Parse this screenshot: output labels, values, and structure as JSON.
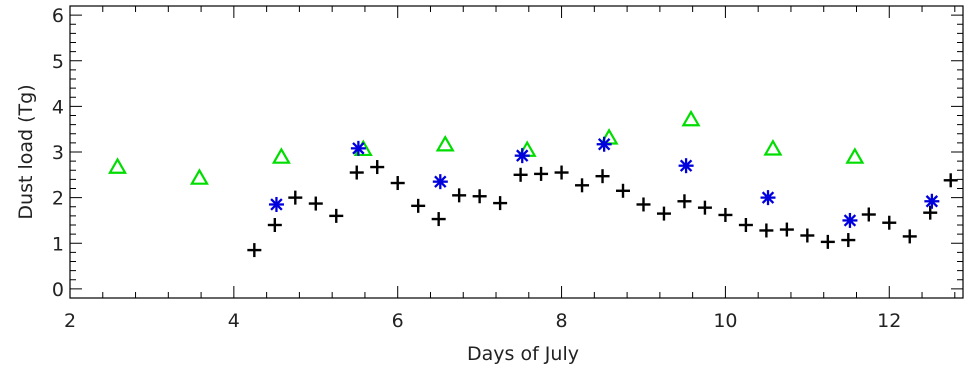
{
  "chart_data": {
    "type": "scatter",
    "title": "",
    "xlabel": "Days of July",
    "ylabel": "Dust load (Tg)",
    "xlim": [
      2,
      12.9
    ],
    "ylim": [
      -0.2,
      6.2
    ],
    "xticks": [
      2,
      4,
      6,
      8,
      10,
      12
    ],
    "yticks": [
      0,
      1,
      2,
      3,
      4,
      5,
      6
    ],
    "grid": false,
    "series": [
      {
        "marker": "plus",
        "color": "#000000",
        "x": [
          4.25,
          4.5,
          4.75,
          5.0,
          5.25,
          5.5,
          5.75,
          6.0,
          6.25,
          6.5,
          6.75,
          7.0,
          7.25,
          7.5,
          7.75,
          8.0,
          8.25,
          8.5,
          8.75,
          9.0,
          9.25,
          9.5,
          9.75,
          10.0,
          10.25,
          10.5,
          10.75,
          11.0,
          11.25,
          11.5,
          11.75,
          12.0,
          12.25,
          12.5,
          12.75
        ],
        "y": [
          0.85,
          1.4,
          2.0,
          1.87,
          1.6,
          2.55,
          2.67,
          2.32,
          1.82,
          1.53,
          2.05,
          2.03,
          1.88,
          2.5,
          2.52,
          2.55,
          2.27,
          2.47,
          2.15,
          1.85,
          1.65,
          1.92,
          1.78,
          1.62,
          1.4,
          1.28,
          1.3,
          1.17,
          1.03,
          1.07,
          1.63,
          1.45,
          1.15,
          1.67,
          2.38
        ]
      },
      {
        "marker": "triangle",
        "color": "#00dd00",
        "x": [
          2.58,
          3.58,
          4.58,
          5.58,
          6.58,
          7.58,
          8.58,
          9.58,
          10.58,
          11.58
        ],
        "y": [
          2.66,
          2.42,
          2.88,
          3.05,
          3.15,
          3.03,
          3.3,
          3.7,
          3.06,
          2.88
        ]
      },
      {
        "marker": "asterisk",
        "color": "#0000dd",
        "x": [
          4.52,
          5.52,
          6.52,
          7.52,
          8.52,
          9.52,
          10.52,
          11.52,
          12.52
        ],
        "y": [
          1.85,
          3.08,
          2.35,
          2.92,
          3.17,
          2.7,
          2.0,
          1.5,
          1.92
        ]
      }
    ]
  }
}
